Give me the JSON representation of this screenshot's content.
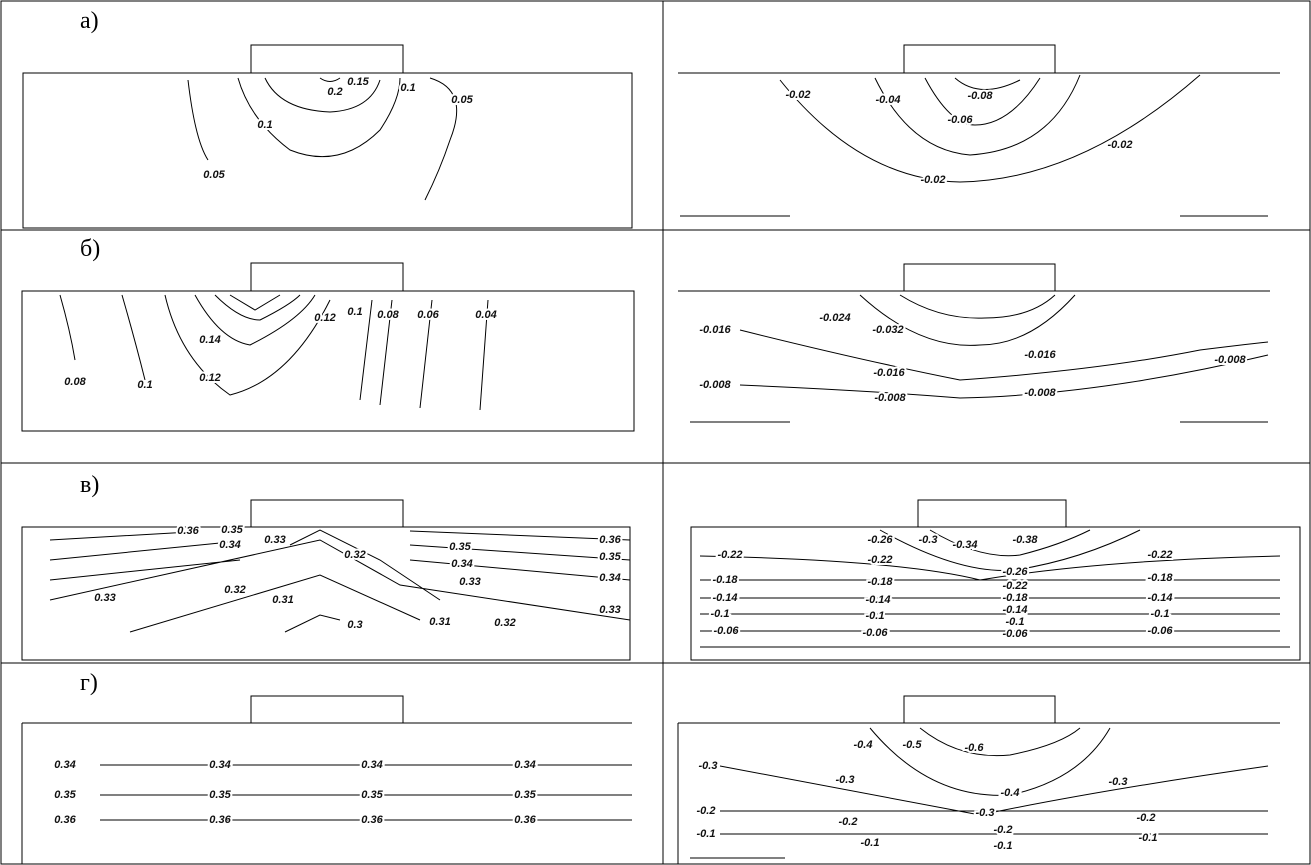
{
  "panels": [
    {
      "label": "а)",
      "left": [
        "0.2",
        "0.15",
        "0.1",
        "0.05",
        "0.1",
        "0.05"
      ],
      "right": [
        "-0.02",
        "-0.04",
        "-0.08",
        "-0.06",
        "-0.02",
        "-0.02"
      ]
    },
    {
      "label": "б)",
      "left": [
        "0.08",
        "0.1",
        "0.14",
        "0.12",
        "0.12",
        "0.1",
        "0.08",
        "0.06",
        "0.04"
      ],
      "right": [
        "-0.016",
        "-0.024",
        "-0.032",
        "-0.016",
        "-0.016",
        "-0.008",
        "-0.008",
        "-0.008",
        "-0.008"
      ]
    },
    {
      "label": "в)",
      "left": [
        "0.36",
        "0.35",
        "0.34",
        "0.33",
        "0.32",
        "0.35",
        "0.34",
        "0.33",
        "0.36",
        "0.35",
        "0.34",
        "0.33",
        "0.33",
        "0.32",
        "0.31",
        "0.31",
        "0.32",
        "0.3"
      ],
      "right": [
        "-0.26",
        "-0.3",
        "-0.34",
        "-0.38",
        "-0.22",
        "-0.22",
        "-0.22",
        "-0.18",
        "-0.18",
        "-0.26",
        "-0.22",
        "-0.18",
        "-0.14",
        "-0.1",
        "-0.06",
        "-0.18",
        "-0.14",
        "-0.14",
        "-0.14",
        "-0.1",
        "-0.1",
        "-0.1",
        "-0.06",
        "-0.06",
        "-0.06"
      ]
    },
    {
      "label": "г)",
      "left": [
        "0.34",
        "0.34",
        "0.34",
        "0.34",
        "0.35",
        "0.35",
        "0.35",
        "0.35",
        "0.36",
        "0.36",
        "0.36",
        "0.36"
      ],
      "right": [
        "-0.4",
        "-0.5",
        "-0.6",
        "-0.3",
        "-0.3",
        "-0.3",
        "-0.4",
        "-0.3",
        "-0.2",
        "-0.2",
        "-0.2",
        "-0.2",
        "-0.1",
        "-0.1",
        "-0.1",
        "-0.1"
      ]
    }
  ]
}
